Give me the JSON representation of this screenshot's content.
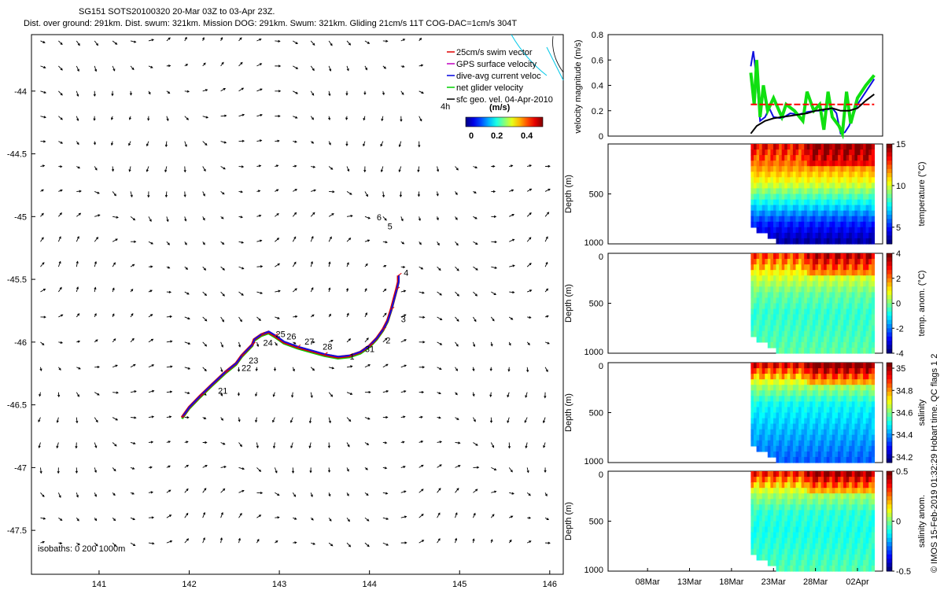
{
  "title_line1": "SG151 SOTS20100320 20-Mar 03Z to 03-Apr 23Z.",
  "title_line2": "Dist. over ground: 291km. Dist. swum: 321km. Mission DOG: 291km. Swum: 321km. Gliding 21cm/s 11T COG-DAC=1cm/s 304T",
  "credit": "© IMOS 15-Feb-2019 01:32:29 Hobart time. QC flags 1  2",
  "chart_data": [
    {
      "type": "scatter",
      "panel": "track-map",
      "x_ticks": [
        141,
        142,
        143,
        144,
        145,
        146
      ],
      "y_ticks": [
        -44,
        -44.5,
        -45,
        -45.5,
        -46,
        -46.5,
        -47,
        -47.5
      ],
      "xlim": [
        140.25,
        146.15
      ],
      "ylim": [
        -47.85,
        -43.55
      ],
      "legend": [
        {
          "label": "25cm/s swim vector",
          "color": "#e00000"
        },
        {
          "label": "GPS surface velocity",
          "color": "#c000c0"
        },
        {
          "label": "dive-avg current veloc",
          "color": "#0000e0"
        },
        {
          "label": "net glider velocity",
          "color": "#00d000"
        },
        {
          "label": "sfc geo. vel. 04-Apr-2010",
          "color": "#000000"
        }
      ],
      "scale_label": "4h",
      "colorbar_title": "(m/s)",
      "colorbar_ticks": [
        "0",
        "0.2",
        "0.4"
      ],
      "isobaths_label": "isobaths: 0   200  1000m",
      "track": {
        "lon": [
          141.92,
          142.0,
          142.12,
          142.25,
          142.4,
          142.52,
          142.58,
          142.62,
          142.7,
          142.72,
          142.8,
          142.88,
          142.95,
          143.05,
          143.2,
          143.35,
          143.5,
          143.65,
          143.78,
          143.9,
          144.0,
          144.08,
          144.15,
          144.2,
          144.24,
          144.27,
          144.3,
          144.32,
          144.32
        ],
        "lat": [
          -46.6,
          -46.52,
          -46.43,
          -46.34,
          -46.24,
          -46.17,
          -46.11,
          -46.08,
          -46.02,
          -45.98,
          -45.94,
          -45.92,
          -45.95,
          -46.0,
          -46.04,
          -46.07,
          -46.1,
          -46.12,
          -46.11,
          -46.08,
          -46.03,
          -45.97,
          -45.9,
          -45.83,
          -45.74,
          -45.66,
          -45.58,
          -45.52,
          -45.47
        ]
      },
      "track_labels": [
        {
          "text": "21",
          "lon": 142.32,
          "lat": -46.41
        },
        {
          "text": "22",
          "lon": 142.58,
          "lat": -46.23
        },
        {
          "text": "23",
          "lon": 142.66,
          "lat": -46.17
        },
        {
          "text": "24",
          "lon": 142.82,
          "lat": -46.03
        },
        {
          "text": "25",
          "lon": 142.96,
          "lat": -45.96
        },
        {
          "text": "26",
          "lon": 143.08,
          "lat": -45.98
        },
        {
          "text": "27",
          "lon": 143.28,
          "lat": -46.02
        },
        {
          "text": "28",
          "lon": 143.48,
          "lat": -46.06
        },
        {
          "text": "1",
          "lon": 143.78,
          "lat": -46.14
        },
        {
          "text": "31",
          "lon": 143.95,
          "lat": -46.08
        },
        {
          "text": "2",
          "lon": 144.18,
          "lat": -46.01
        },
        {
          "text": "3",
          "lon": 144.35,
          "lat": -45.84
        },
        {
          "text": "4",
          "lon": 144.38,
          "lat": -45.47
        },
        {
          "text": "5",
          "lon": 144.2,
          "lat": -45.1
        },
        {
          "text": "6",
          "lon": 144.08,
          "lat": -45.03
        }
      ]
    },
    {
      "type": "line",
      "panel": "velocity",
      "ylabel": "velocity magnitude (m/s)",
      "ylim": [
        0,
        0.8
      ],
      "y_ticks": [
        "0",
        "0.2",
        "0.4",
        "0.6",
        "0.8"
      ],
      "series": [
        {
          "name": "dive-avg current",
          "color": "#1010e0",
          "x": [
            20.3,
            20.6,
            21.0,
            21.4,
            22.0,
            22.5,
            23.0,
            24.0,
            25.0,
            26.0,
            27.0,
            28.0,
            29.0,
            30.0,
            30.5,
            31.0,
            31.5,
            32.0,
            33.0,
            34.0,
            35.0
          ],
          "y": [
            0.55,
            0.67,
            0.45,
            0.12,
            0.15,
            0.22,
            0.15,
            0.14,
            0.18,
            0.17,
            0.19,
            0.2,
            0.2,
            0.22,
            0.18,
            0.02,
            0.03,
            0.08,
            0.25,
            0.35,
            0.45
          ]
        },
        {
          "name": "net glider velocity",
          "color": "#10e010",
          "x": [
            20.3,
            20.7,
            21.0,
            21.4,
            21.8,
            22.3,
            23.0,
            24.0,
            24.5,
            25.5,
            26.5,
            27.0,
            27.8,
            28.5,
            29.0,
            29.5,
            30.0,
            30.8,
            31.2,
            31.7,
            32.2,
            33.0,
            34.0,
            35.0
          ],
          "y": [
            0.5,
            0.25,
            0.6,
            0.15,
            0.4,
            0.2,
            0.3,
            0.15,
            0.25,
            0.2,
            0.12,
            0.35,
            0.2,
            0.25,
            0.05,
            0.35,
            0.15,
            0.08,
            0.02,
            0.35,
            0.1,
            0.3,
            0.4,
            0.48
          ]
        },
        {
          "name": "swim vector",
          "color": "#ff0000",
          "dashed": true,
          "x": [
            20.3,
            35.0
          ],
          "y": [
            0.25,
            0.25
          ]
        },
        {
          "name": "sfc geo. vel.",
          "color": "#000000",
          "x": [
            20.3,
            21.0,
            22.0,
            23.0,
            24.0,
            25.0,
            26.0,
            27.0,
            28.0,
            29.0,
            30.0,
            31.0,
            32.0,
            33.0,
            34.0,
            35.0
          ],
          "y": [
            0.02,
            0.08,
            0.12,
            0.14,
            0.15,
            0.16,
            0.17,
            0.18,
            0.2,
            0.21,
            0.22,
            0.2,
            0.2,
            0.22,
            0.28,
            0.33
          ]
        }
      ]
    },
    {
      "type": "heatmap",
      "panel": "temperature",
      "ylabel": "Depth (m)",
      "colorbar_label": "temperature (°C)",
      "y_ticks": [
        "",
        "500",
        "1000"
      ],
      "colorbar_ticks": [
        "15",
        "10",
        "5"
      ],
      "range": [
        3,
        15
      ],
      "profile": [
        13.5,
        12.0,
        10.0,
        7.5,
        5.0,
        3.5
      ]
    },
    {
      "type": "heatmap",
      "panel": "temp-anomaly",
      "ylabel": "Depth (m)",
      "colorbar_label": "temp. anom. (°C)",
      "y_ticks": [
        "0",
        "500",
        "1000"
      ],
      "colorbar_ticks": [
        "4",
        "2",
        "0",
        "-2",
        "-4"
      ],
      "range": [
        -4,
        4
      ],
      "profile": [
        2.5,
        0.8,
        -0.2,
        -0.6,
        -0.5,
        -0.3
      ]
    },
    {
      "type": "heatmap",
      "panel": "salinity",
      "ylabel": "Depth (m)",
      "colorbar_label": "salinity",
      "y_ticks": [
        "0",
        "500",
        "1000"
      ],
      "colorbar_ticks": [
        "35",
        "34.8",
        "34.6",
        "34.4",
        "34.2"
      ],
      "range": [
        34.15,
        35.05
      ],
      "profile": [
        34.95,
        34.65,
        34.5,
        34.45,
        34.4,
        34.35
      ]
    },
    {
      "type": "heatmap",
      "panel": "salinity-anomaly",
      "ylabel": "Depth (m)",
      "colorbar_label": "salinity anom.",
      "y_ticks": [
        "0",
        "500",
        "1000"
      ],
      "colorbar_ticks": [
        "0.5",
        "0",
        "-0.5"
      ],
      "range": [
        -0.5,
        0.5
      ],
      "profile": [
        0.35,
        0.05,
        -0.08,
        -0.1,
        -0.08,
        -0.05
      ]
    },
    {
      "type": "axis",
      "panel": "time-axis",
      "x_ticks": [
        "08Mar",
        "13Mar",
        "18Mar",
        "23Mar",
        "28Mar",
        "02Apr"
      ],
      "x_tick_days": [
        8,
        13,
        18,
        23,
        28,
        33
      ],
      "xlim": [
        3.3,
        36.0
      ],
      "data_start_day": 20.3,
      "data_end_day": 35.0
    }
  ]
}
